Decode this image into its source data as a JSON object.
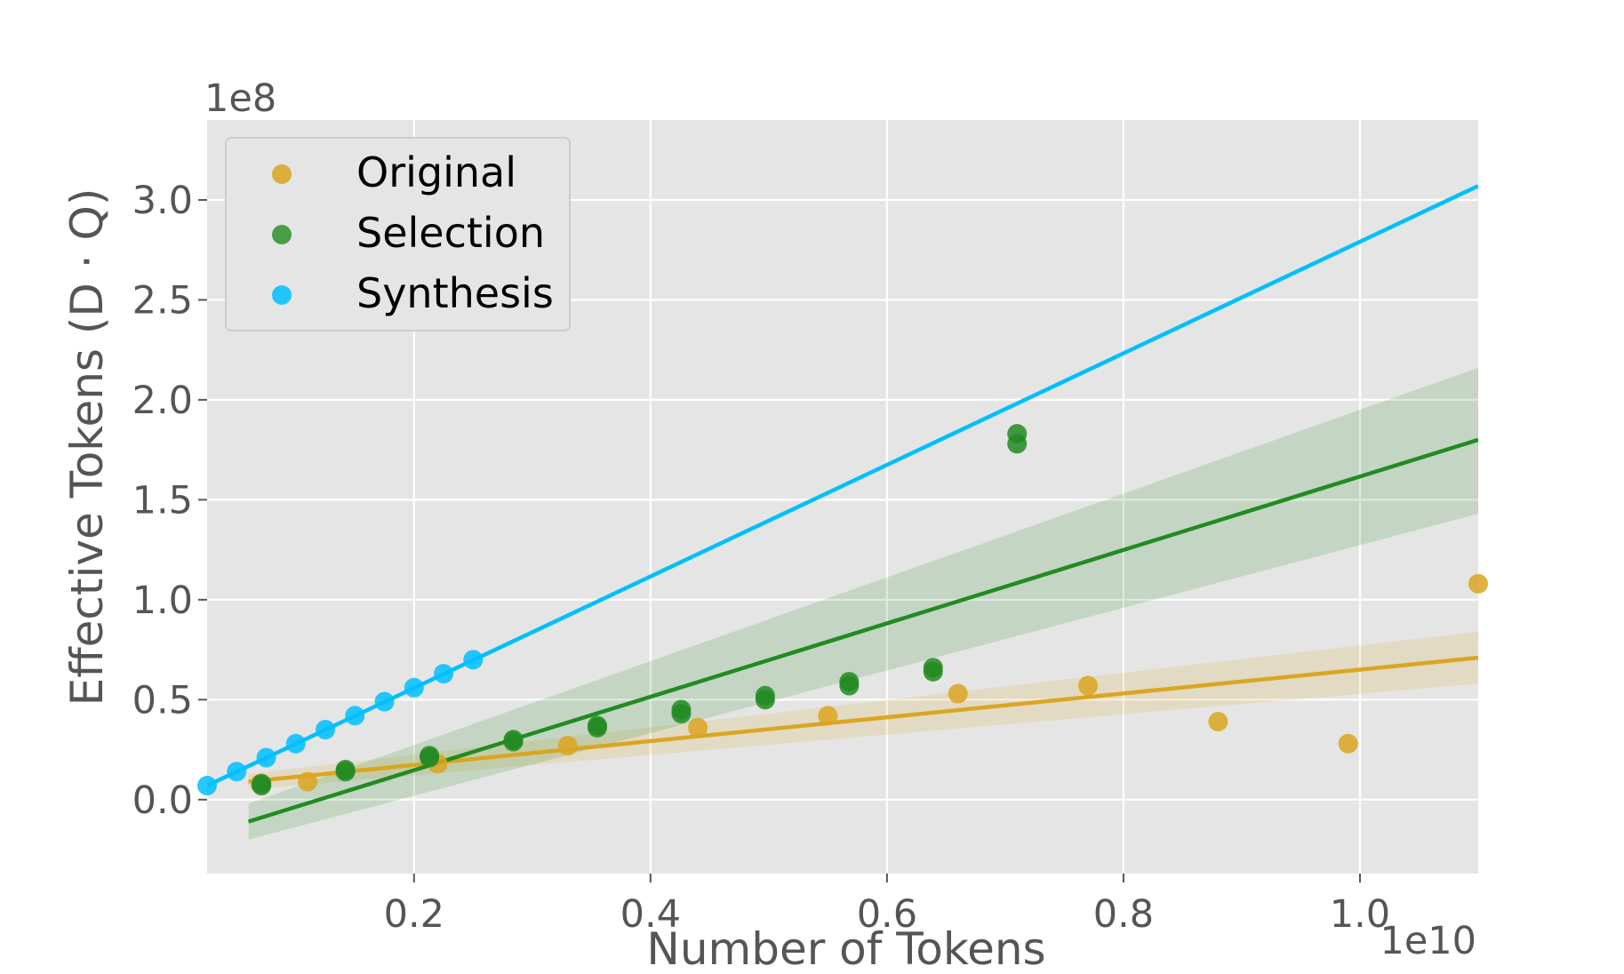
{
  "chart_data": {
    "type": "scatter",
    "title": "",
    "xlabel": "Number of Tokens",
    "ylabel": "Effective Tokens (D · Q)",
    "x_multiplier": "1e10",
    "y_multiplier": "1e8",
    "xlim": [
      0.025,
      1.1
    ],
    "ylim": [
      -0.37,
      3.4
    ],
    "xticks": [
      0.2,
      0.4,
      0.6,
      0.8,
      1.0
    ],
    "xtick_labels": [
      "0.2",
      "0.4",
      "0.6",
      "0.8",
      "1.0"
    ],
    "yticks": [
      0.0,
      0.5,
      1.0,
      1.5,
      2.0,
      2.5,
      3.0
    ],
    "ytick_labels": [
      "0.0",
      "0.5",
      "1.0",
      "1.5",
      "2.0",
      "2.5",
      "3.0"
    ],
    "grid": true,
    "legend_position": "top-left",
    "series": [
      {
        "name": "Original",
        "color": "#DAA520",
        "x": [
          0.07,
          0.11,
          0.22,
          0.33,
          0.44,
          0.55,
          0.66,
          0.77,
          0.88,
          0.99,
          1.1
        ],
        "y": [
          0.08,
          0.09,
          0.18,
          0.27,
          0.36,
          0.42,
          0.53,
          0.57,
          0.39,
          0.28,
          1.08
        ],
        "fit": {
          "x0": 0.06,
          "y0": 0.09,
          "x1": 1.1,
          "y1": 0.71
        },
        "ci": {
          "lower0": 0.05,
          "upper0": 0.13,
          "lower1": 0.58,
          "upper1": 0.84
        }
      },
      {
        "name": "Selection",
        "color": "#228B22",
        "x": [
          0.071,
          0.071,
          0.142,
          0.142,
          0.213,
          0.213,
          0.284,
          0.284,
          0.355,
          0.355,
          0.426,
          0.426,
          0.497,
          0.497,
          0.568,
          0.568,
          0.639,
          0.639,
          0.71,
          0.71
        ],
        "y": [
          0.07,
          0.08,
          0.14,
          0.15,
          0.21,
          0.22,
          0.29,
          0.3,
          0.36,
          0.37,
          0.43,
          0.45,
          0.5,
          0.52,
          0.57,
          0.59,
          0.64,
          0.66,
          1.78,
          1.83
        ],
        "fit": {
          "x0": 0.06,
          "y0": -0.11,
          "x1": 1.1,
          "y1": 1.8
        },
        "ci": {
          "lower0": -0.2,
          "upper0": -0.02,
          "lower1": 1.43,
          "upper1": 2.16
        }
      },
      {
        "name": "Synthesis",
        "color": "#00BFFF",
        "x": [
          0.025,
          0.05,
          0.075,
          0.1,
          0.125,
          0.15,
          0.175,
          0.2,
          0.225,
          0.25
        ],
        "y": [
          0.07,
          0.14,
          0.21,
          0.28,
          0.35,
          0.42,
          0.49,
          0.56,
          0.63,
          0.7
        ],
        "fit": {
          "x0": 0.025,
          "y0": 0.07,
          "x1": 1.1,
          "y1": 3.07
        }
      }
    ]
  }
}
